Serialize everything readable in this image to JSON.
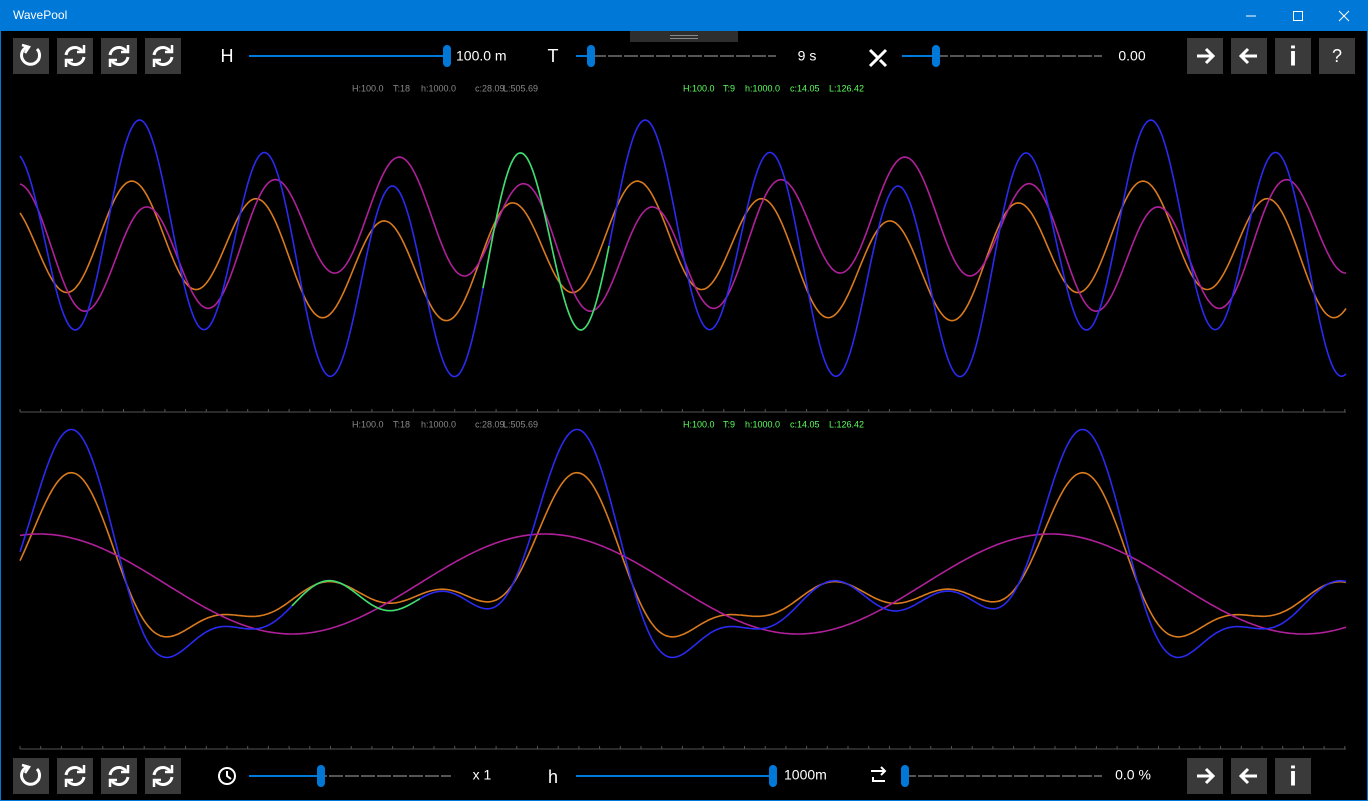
{
  "window": {
    "title": "WavePool"
  },
  "top_toolbar": {
    "height_label": "H",
    "height_value": "100.0 m",
    "period_label": "T",
    "period_value": "9 s",
    "angle_value": "0.00",
    "info_button": "i",
    "help_button": "?"
  },
  "panels": [
    {
      "info_gray": [
        "H:100.0",
        "T:18",
        "h:1000.0",
        "c:28.09",
        "L:505.69"
      ],
      "info_green": [
        "H:100.0",
        "T:9",
        "h:1000.0",
        "c:14.05",
        "L:126.42"
      ]
    },
    {
      "info_gray": [
        "H:100.0",
        "T:18",
        "h:1000.0",
        "c:28.09",
        "L:505.69"
      ],
      "info_green": [
        "H:100.0",
        "T:9",
        "h:1000.0",
        "c:14.05",
        "L:126.42"
      ]
    }
  ],
  "bottom_toolbar": {
    "speed_value": "x 1",
    "depth_label": "h",
    "depth_value": "1000m",
    "reflection_value": "0.0 %",
    "info_button": "i"
  }
}
